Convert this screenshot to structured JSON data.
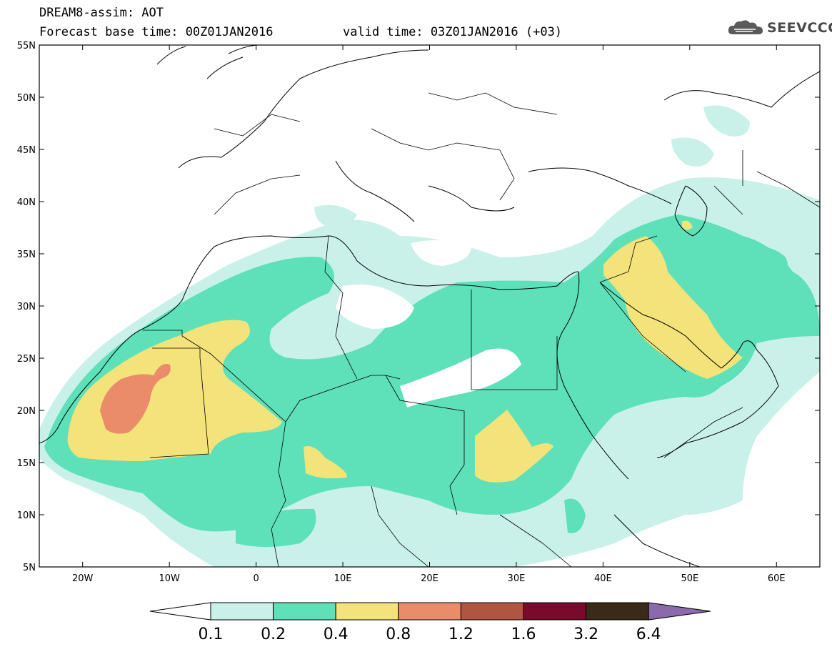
{
  "header": {
    "title": "DREAM8-assim: AOT",
    "forecast_base": "Forecast base time: 00Z01JAN2016",
    "valid_time": "valid time: 03Z01JAN2016 (+03)",
    "logo_text": "SEEVCCC"
  },
  "map": {
    "lon_range": [
      -25,
      65
    ],
    "lat_range": [
      5,
      55
    ],
    "lat_labels": [
      "55N",
      "50N",
      "45N",
      "40N",
      "35N",
      "30N",
      "25N",
      "20N",
      "15N",
      "10N",
      "5N"
    ],
    "lon_labels": [
      "20W",
      "10W",
      "0",
      "10E",
      "20E",
      "30E",
      "40E",
      "50E",
      "60E"
    ]
  },
  "legend": {
    "levels": [
      "0.1",
      "0.2",
      "0.4",
      "0.8",
      "1.2",
      "1.6",
      "3.2",
      "6.4"
    ],
    "colors": [
      "#c9f1ea",
      "#5ee0b8",
      "#f4e37a",
      "#ea8c6a",
      "#b05542",
      "#7a0a2c",
      "#3a2a1a",
      "#8a6aaa"
    ]
  },
  "colors": {
    "c1": "#c9f1ea",
    "c2": "#5ee0b8",
    "c3": "#f4e37a",
    "c4": "#ea8c6a"
  }
}
